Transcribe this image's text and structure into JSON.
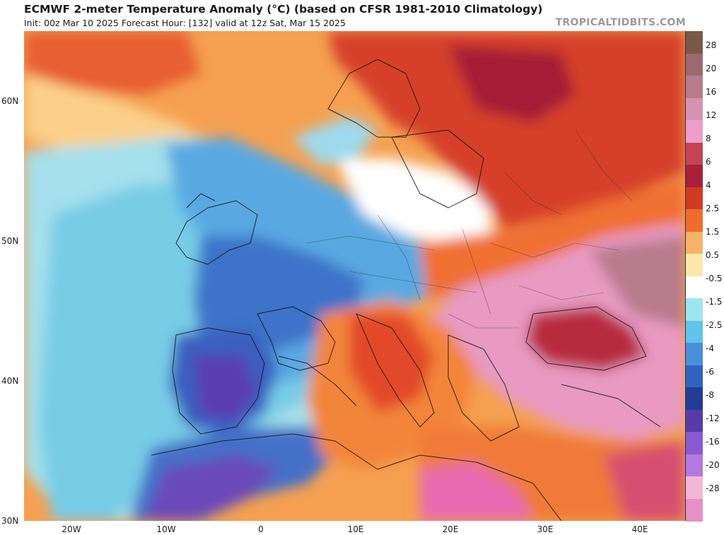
{
  "header": {
    "title": "ECMWF 2-meter Temperature Anomaly (°C) (based on CFSR 1981-2010 Climatology)",
    "subtitle": "Init: 00z Mar 10 2025   Forecast Hour: [132]   valid at 12z Sat, Mar 15 2025",
    "brand": "TROPICALTIDBITS.COM"
  },
  "axes": {
    "lat_labels": [
      "60N",
      "50N",
      "40N",
      "30N"
    ],
    "lon_labels": [
      "20W",
      "10W",
      "0",
      "10E",
      "20E",
      "30E",
      "40E"
    ]
  },
  "legend": {
    "labels": [
      "28",
      "20",
      "16",
      "12",
      "8",
      "6",
      "4",
      "2.5",
      "1.5",
      "0.5",
      "-0.5",
      "-1.5",
      "-2.5",
      "-4",
      "-6",
      "-8",
      "-12",
      "-16",
      "-20",
      "-28"
    ],
    "colors": [
      "#7a5848",
      "#9c6a6e",
      "#b77c8d",
      "#d692b1",
      "#ee9dca",
      "#c44456",
      "#a8203a",
      "#cf3b24",
      "#ef6c2c",
      "#f8b36a",
      "#fce8a8",
      "#ffffff",
      "#9ee6ee",
      "#60c4ec",
      "#4a90d8",
      "#2e64c0",
      "#213d94",
      "#5a3aa8",
      "#8a5ad0",
      "#b478e0",
      "#f2b6d8",
      "#e690c6"
    ]
  }
}
